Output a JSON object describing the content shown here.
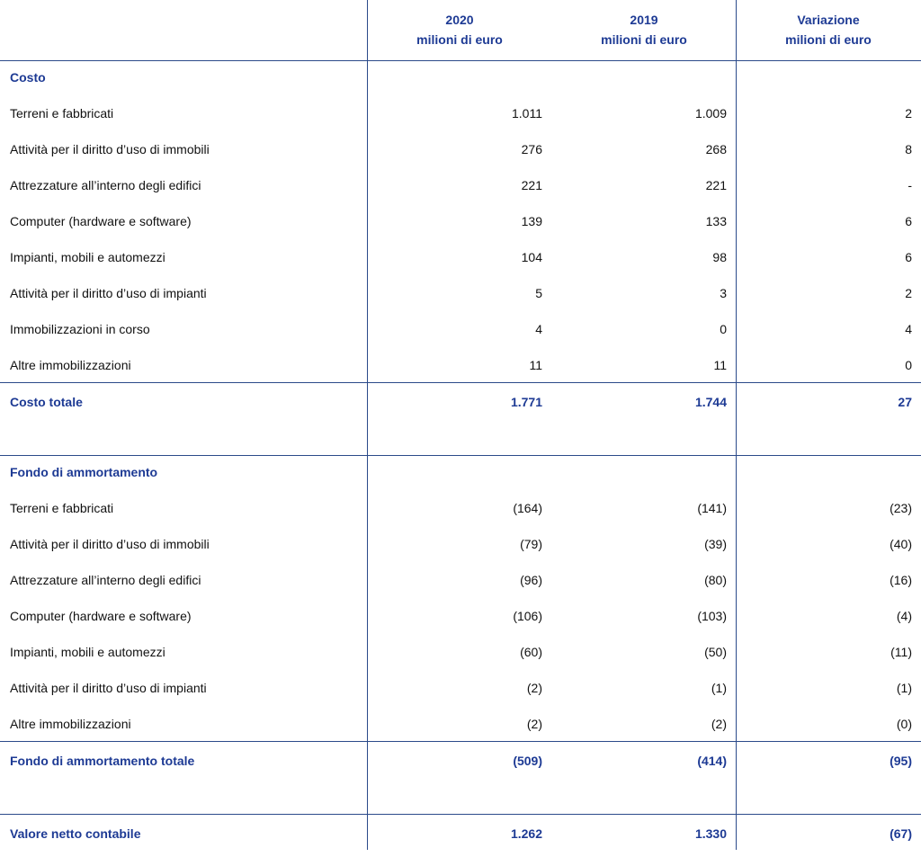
{
  "header": {
    "columns": [
      {
        "line1": "2020",
        "line2": "milioni di euro"
      },
      {
        "line1": "2019",
        "line2": "milioni di euro"
      },
      {
        "line1": "Variazione",
        "line2": "milioni di euro"
      }
    ]
  },
  "sections": [
    {
      "title": "Costo",
      "rows": [
        {
          "label": "Terreni e fabbricati",
          "values": [
            "1.011",
            "1.009",
            "2"
          ]
        },
        {
          "label": "Attività per il diritto d’uso di immobili",
          "values": [
            "276",
            "268",
            "8"
          ]
        },
        {
          "label": "Attrezzature all’interno degli edifici",
          "values": [
            "221",
            "221",
            "-"
          ]
        },
        {
          "label": "Computer (hardware e software)",
          "values": [
            "139",
            "133",
            "6"
          ]
        },
        {
          "label": "Impianti, mobili e automezzi",
          "values": [
            "104",
            "98",
            "6"
          ]
        },
        {
          "label": "Attività per il diritto d’uso di impianti",
          "values": [
            "5",
            "3",
            "2"
          ]
        },
        {
          "label": "Immobilizzazioni in corso",
          "values": [
            "4",
            "0",
            "4"
          ]
        },
        {
          "label": "Altre immobilizzazioni",
          "values": [
            "11",
            "11",
            "0"
          ]
        }
      ],
      "total": {
        "label": "Costo totale",
        "values": [
          "1.771",
          "1.744",
          "27"
        ]
      }
    },
    {
      "title": "Fondo di ammortamento",
      "rows": [
        {
          "label": "Terreni e fabbricati",
          "values": [
            "(164)",
            "(141)",
            "(23)"
          ]
        },
        {
          "label": "Attività per il diritto d’uso di immobili",
          "values": [
            "(79)",
            "(39)",
            "(40)"
          ]
        },
        {
          "label": "Attrezzature all’interno degli edifici",
          "values": [
            "(96)",
            "(80)",
            "(16)"
          ]
        },
        {
          "label": "Computer (hardware e software)",
          "values": [
            "(106)",
            "(103)",
            "(4)"
          ]
        },
        {
          "label": "Impianti, mobili e automezzi",
          "values": [
            "(60)",
            "(50)",
            "(11)"
          ]
        },
        {
          "label": "Attività per il diritto d’uso di impianti",
          "values": [
            "(2)",
            "(1)",
            "(1)"
          ]
        },
        {
          "label": "Altre immobilizzazioni",
          "values": [
            "(2)",
            "(2)",
            "(0)"
          ]
        }
      ],
      "total": {
        "label": "Fondo di ammortamento totale",
        "values": [
          "(509)",
          "(414)",
          "(95)"
        ]
      }
    }
  ],
  "net": {
    "label": "Valore netto contabile",
    "values": [
      "1.262",
      "1.330",
      "(67)"
    ]
  }
}
